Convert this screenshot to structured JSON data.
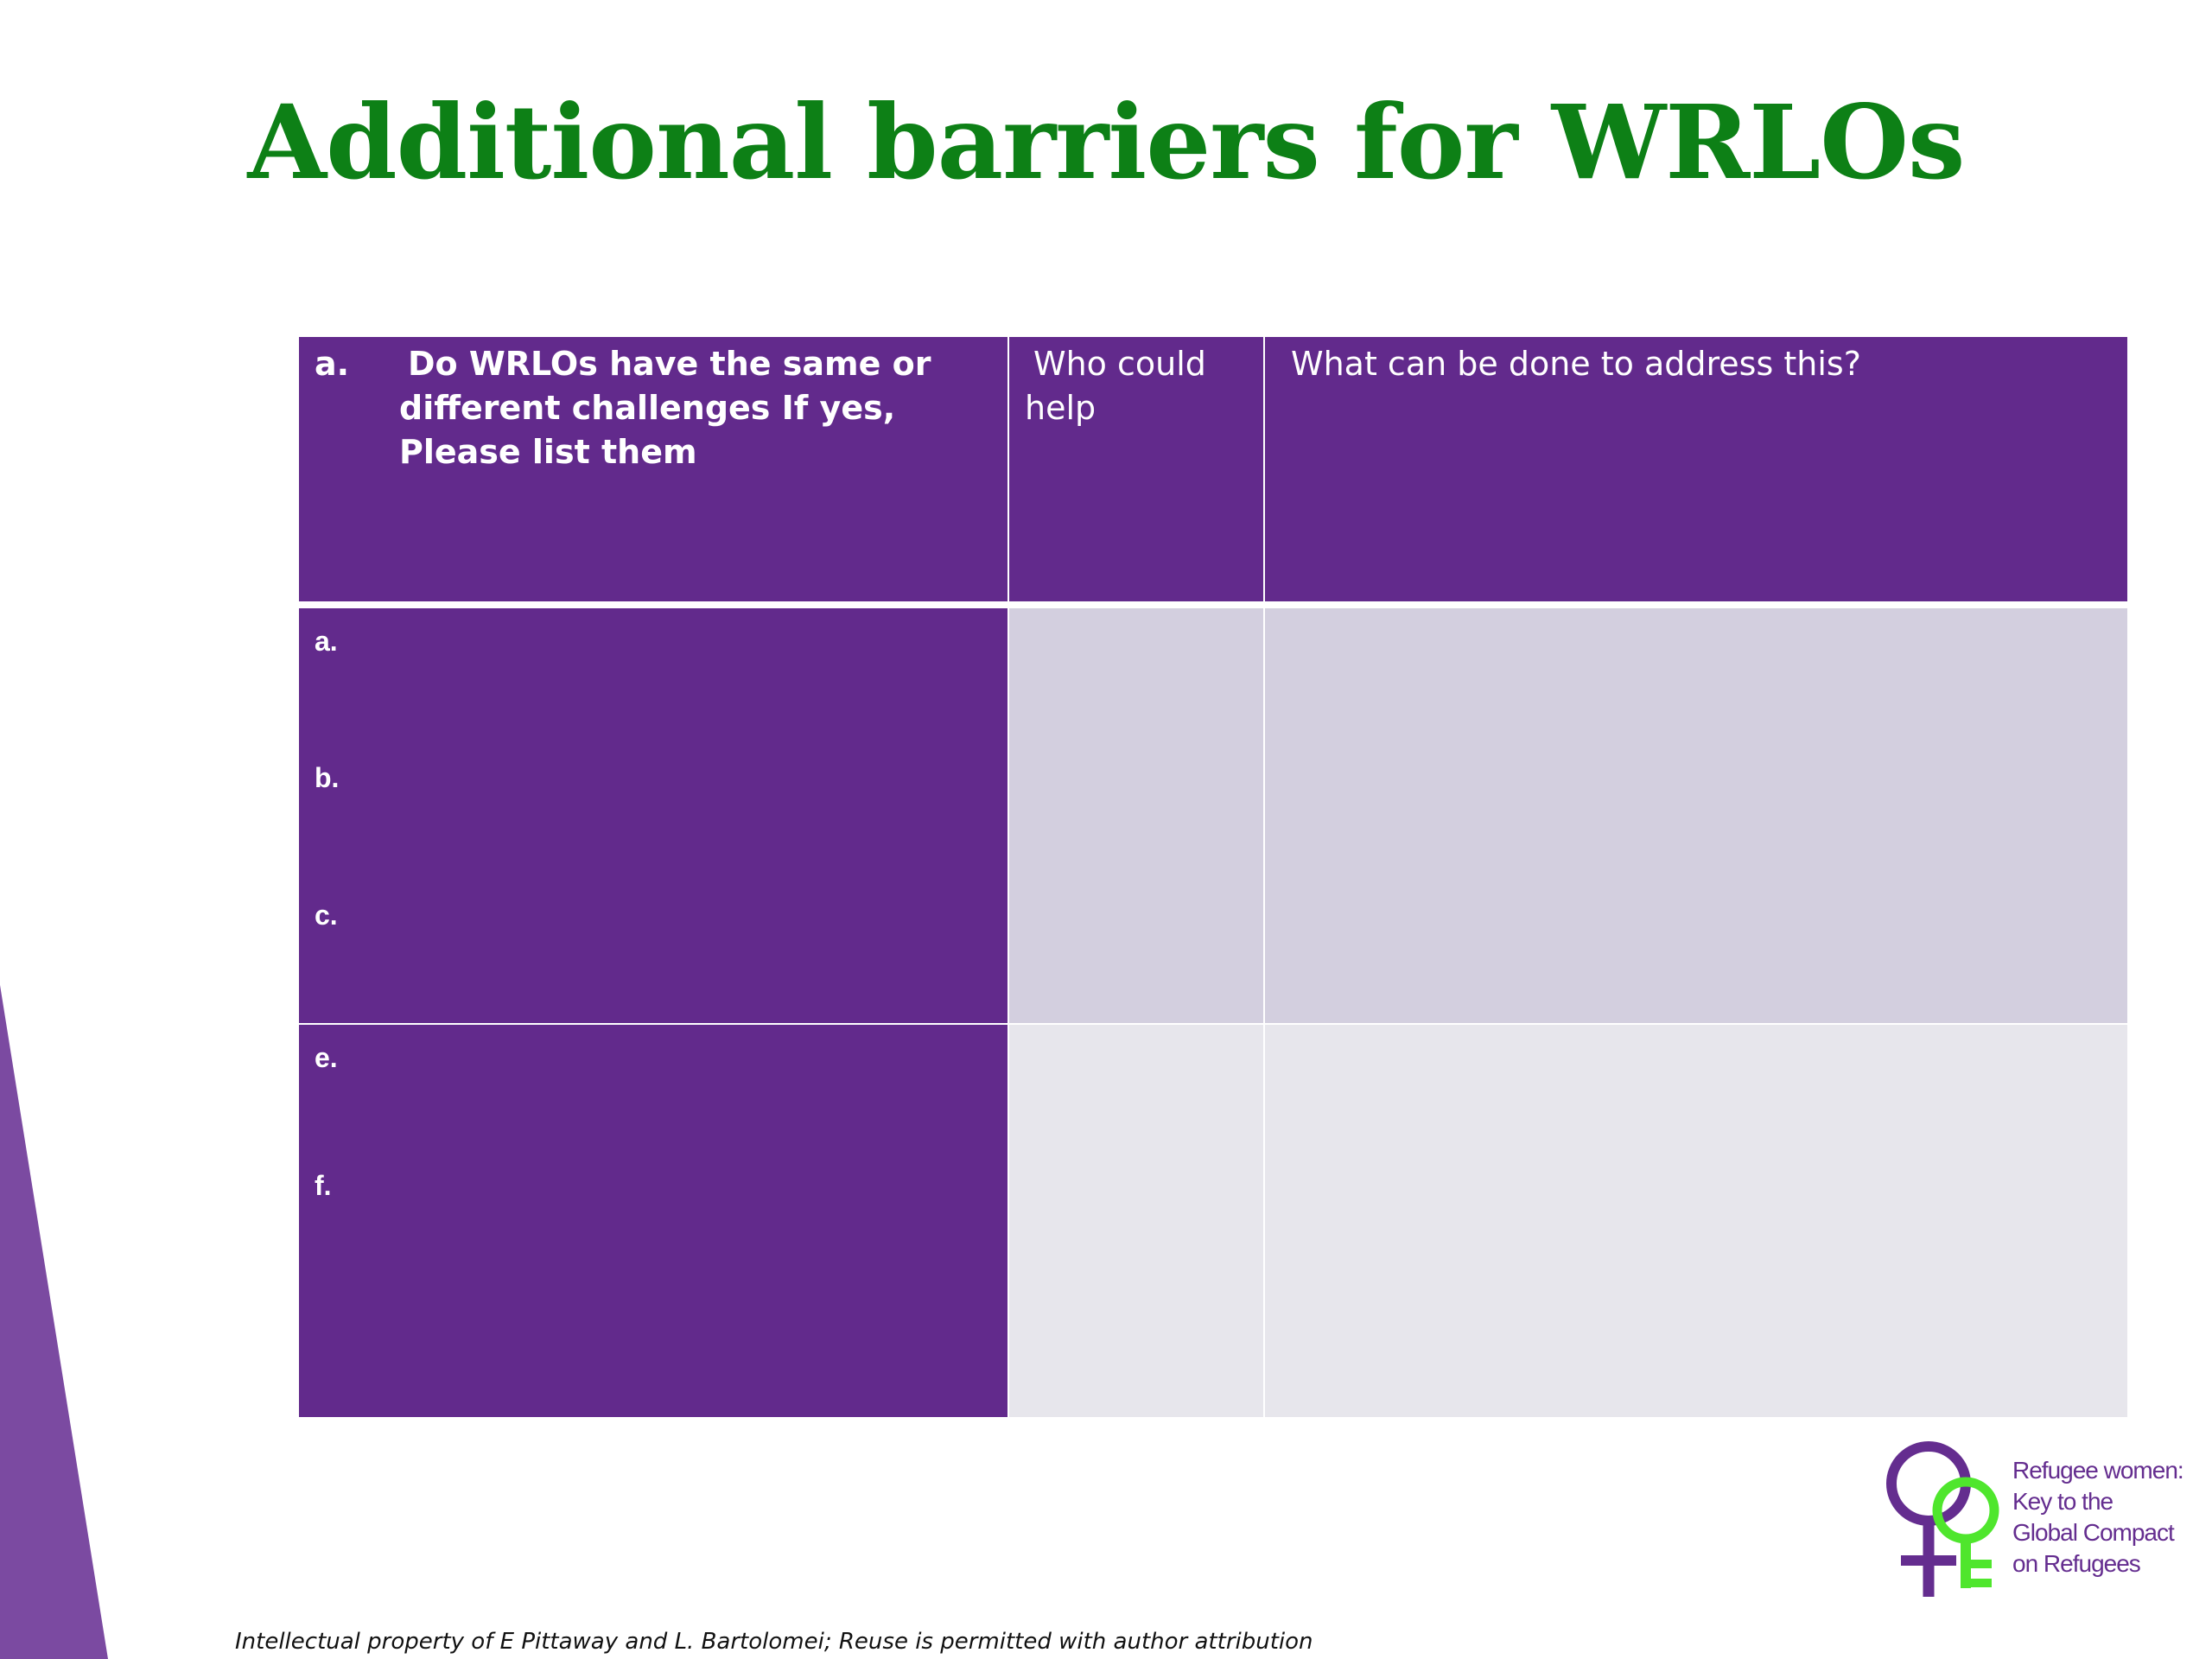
{
  "title": "Additional barriers for WRLOs",
  "table": {
    "header": {
      "col1_marker": "a.",
      "col1_text": "Do WRLOs  have the same or different challenges  If yes, Please list them",
      "col2": "Who could help",
      "col3": "What can be done to address this?"
    },
    "row1_items": [
      "a.",
      "b.",
      "c."
    ],
    "row2_items": [
      "e.",
      "f."
    ]
  },
  "logo": {
    "text_lines": [
      "Refugee women:",
      "Key to the",
      "Global Compact",
      "on Refugees"
    ]
  },
  "footer": "Intellectual property of E Pittaway and L. Bartolomei; Reuse is permitted with author attribution",
  "colors": {
    "title": "#0d8016",
    "purple": "#622a8c",
    "lavender": "#d3cfdf",
    "light_gray": "#e7e6ec",
    "logo_green": "#4fe62d"
  }
}
